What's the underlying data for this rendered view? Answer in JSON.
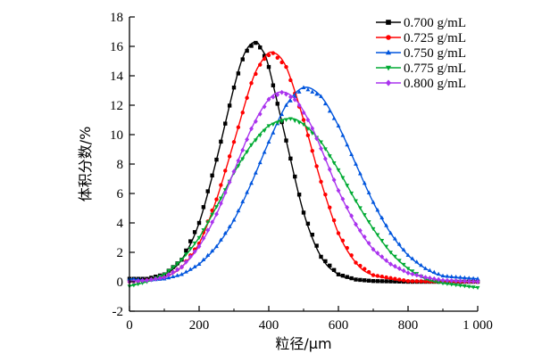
{
  "chart_data": {
    "type": "line",
    "xlabel": "粒径/μm",
    "ylabel": "体积分数/%",
    "xlim": [
      0,
      1000
    ],
    "ylim": [
      -2,
      18
    ],
    "xticks": [
      0,
      200,
      400,
      600,
      800,
      1000
    ],
    "xtick_labels": [
      "0",
      "200",
      "400",
      "600",
      "800",
      "1 000"
    ],
    "yticks": [
      -2,
      0,
      2,
      4,
      6,
      8,
      10,
      12,
      14,
      16,
      18
    ],
    "ytick_labels": [
      "-2",
      "0",
      "2",
      "4",
      "6",
      "8",
      "10",
      "12",
      "14",
      "16",
      "18"
    ],
    "grid": false,
    "legend_position": "top-right",
    "series": [
      {
        "name": "0.700 g/mL",
        "color": "#000000",
        "marker": "square",
        "x": [
          0,
          50,
          100,
          150,
          200,
          250,
          300,
          330,
          360,
          380,
          400,
          450,
          500,
          550,
          600,
          650,
          700,
          800,
          900,
          1000
        ],
        "y": [
          0.2,
          0.2,
          0.5,
          1.5,
          4.0,
          8.3,
          13.2,
          15.5,
          16.3,
          15.8,
          14.6,
          9.6,
          4.7,
          1.7,
          0.5,
          0.15,
          0.05,
          0.0,
          0.0,
          0.0
        ]
      },
      {
        "name": "0.725 g/mL",
        "color": "#ff0000",
        "marker": "circle",
        "x": [
          0,
          50,
          100,
          150,
          200,
          250,
          300,
          350,
          380,
          410,
          450,
          500,
          550,
          600,
          650,
          700,
          800,
          900,
          1000
        ],
        "y": [
          0.0,
          0.1,
          0.3,
          1.0,
          2.6,
          5.6,
          9.5,
          13.5,
          15.0,
          15.6,
          14.6,
          11.0,
          6.8,
          3.3,
          1.3,
          0.45,
          0.05,
          0.0,
          0.0
        ]
      },
      {
        "name": "0.750 g/mL",
        "color": "#0055dd",
        "marker": "triangle-up",
        "x": [
          0,
          50,
          100,
          150,
          200,
          250,
          300,
          350,
          400,
          450,
          500,
          550,
          600,
          650,
          700,
          750,
          800,
          850,
          900,
          1000
        ],
        "y": [
          0.2,
          0.1,
          0.2,
          0.5,
          1.2,
          2.4,
          4.2,
          6.7,
          9.5,
          12.0,
          13.2,
          12.6,
          10.6,
          8.0,
          5.4,
          3.3,
          1.8,
          0.9,
          0.4,
          0.2
        ]
      },
      {
        "name": "0.775 g/mL",
        "color": "#00aa33",
        "marker": "triangle-down",
        "x": [
          0,
          50,
          100,
          150,
          200,
          250,
          300,
          350,
          400,
          460,
          500,
          550,
          600,
          650,
          700,
          750,
          800,
          850,
          900,
          1000
        ],
        "y": [
          -0.3,
          0.0,
          0.5,
          1.5,
          3.0,
          5.1,
          7.4,
          9.3,
          10.6,
          11.1,
          10.7,
          9.5,
          7.6,
          5.5,
          3.6,
          2.0,
          0.9,
          0.2,
          -0.1,
          -0.4
        ]
      },
      {
        "name": "0.800 g/mL",
        "color": "#aa33ee",
        "marker": "diamond",
        "x": [
          0,
          50,
          100,
          150,
          200,
          250,
          300,
          350,
          400,
          440,
          480,
          520,
          560,
          600,
          650,
          700,
          750,
          800,
          850,
          900,
          1000
        ],
        "y": [
          0.0,
          0.1,
          0.3,
          1.0,
          2.4,
          4.6,
          7.5,
          10.4,
          12.4,
          12.9,
          12.3,
          10.7,
          8.5,
          6.2,
          3.9,
          2.2,
          1.2,
          0.6,
          0.3,
          0.1,
          0.0
        ]
      }
    ]
  }
}
